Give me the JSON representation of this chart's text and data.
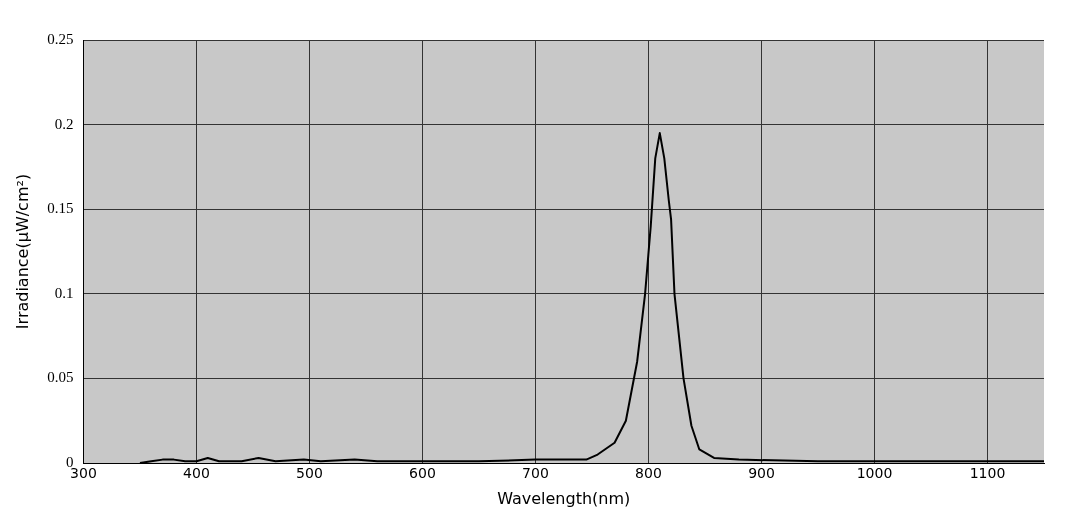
{
  "chart_data": {
    "type": "line",
    "xlabel": "Wavelength(nm)",
    "ylabel": "Irradiance(μW/cm²)",
    "x": [
      350,
      360,
      370,
      380,
      390,
      400,
      410,
      420,
      440,
      455,
      470,
      495,
      510,
      540,
      560,
      600,
      650,
      700,
      730,
      745,
      755,
      770,
      780,
      790,
      797,
      802,
      806,
      810,
      814,
      818,
      820,
      823,
      831,
      838,
      845,
      858,
      880,
      950,
      1050,
      1150
    ],
    "series": [
      {
        "color": "#000000",
        "values": [
          0,
          0.001,
          0.002,
          0.002,
          0.001,
          0.001,
          0.003,
          0.001,
          0.001,
          0.003,
          0.001,
          0.002,
          0.001,
          0.002,
          0.001,
          0.001,
          0.001,
          0.002,
          0.002,
          0.002,
          0.005,
          0.012,
          0.025,
          0.06,
          0.1,
          0.14,
          0.18,
          0.195,
          0.18,
          0.155,
          0.144,
          0.1,
          0.05,
          0.022,
          0.008,
          0.003,
          0.002,
          0.001,
          0.001,
          0.001
        ]
      }
    ],
    "xlim": [
      300,
      1150
    ],
    "xticks": [
      300,
      400,
      500,
      600,
      700,
      800,
      900,
      1000,
      1100
    ],
    "ylim": [
      0,
      0.25
    ],
    "yticks": [
      0,
      0.05,
      0.1,
      0.15,
      0.2,
      0.25
    ],
    "grid": true,
    "legend": false,
    "marker": "none",
    "line_style": "solid"
  }
}
